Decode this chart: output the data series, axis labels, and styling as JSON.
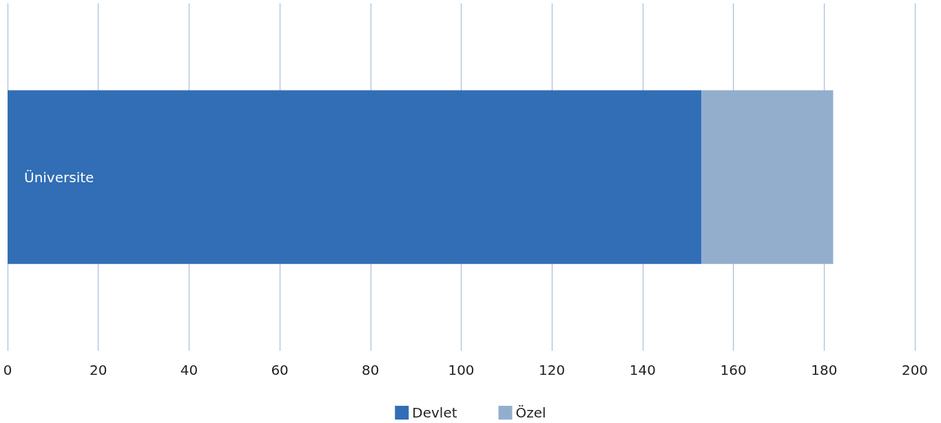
{
  "chart_data": {
    "type": "bar",
    "orientation": "horizontal",
    "stacked": true,
    "categories": [
      "Üniversite"
    ],
    "series": [
      {
        "name": "Devlet",
        "color": "#316eb5",
        "values": [
          153
        ]
      },
      {
        "name": "Özel",
        "color": "#93aecd",
        "values": [
          29
        ]
      }
    ],
    "xlim": [
      0,
      200
    ],
    "xticks": [
      0,
      20,
      40,
      60,
      80,
      100,
      120,
      140,
      160,
      180,
      200
    ],
    "grid": "x",
    "legend": "bottom"
  }
}
